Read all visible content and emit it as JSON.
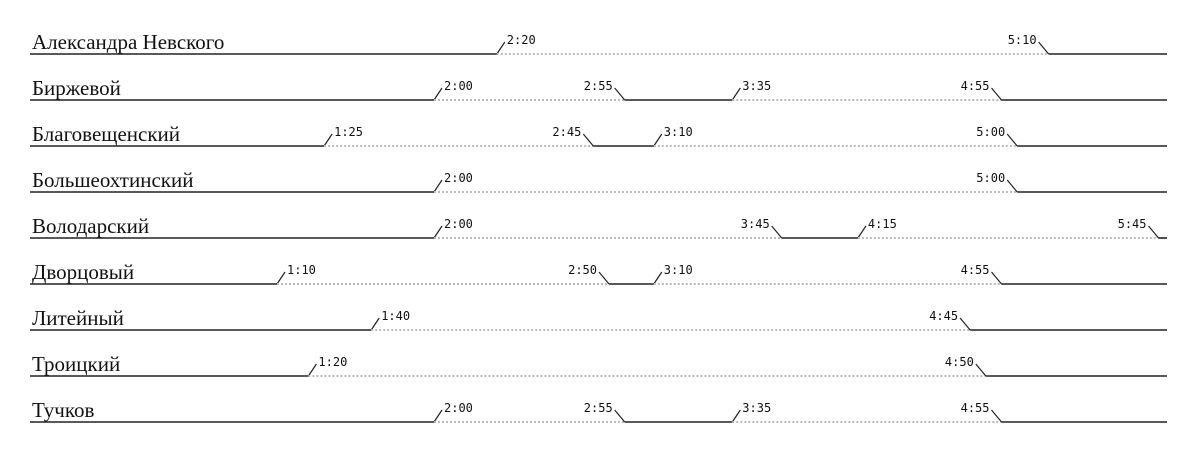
{
  "bridges": [
    {
      "name": "Александра Невского",
      "times": [
        "2:20",
        "5:10"
      ]
    },
    {
      "name": "Биржевой",
      "times": [
        "2:00",
        "2:55",
        "3:35",
        "4:55"
      ]
    },
    {
      "name": "Благовещенский",
      "times": [
        "1:25",
        "2:45",
        "3:10",
        "5:00"
      ]
    },
    {
      "name": "Большеохтинский",
      "times": [
        "2:00",
        "5:00"
      ]
    },
    {
      "name": "Володарский",
      "times": [
        "2:00",
        "3:45",
        "4:15",
        "5:45"
      ]
    },
    {
      "name": "Дворцовый",
      "times": [
        "1:10",
        "2:50",
        "3:10",
        "4:55"
      ]
    },
    {
      "name": "Литейный",
      "times": [
        "1:40",
        "4:45"
      ]
    },
    {
      "name": "Троицкий",
      "times": [
        "1:20",
        "4:50"
      ]
    },
    {
      "name": "Тучков",
      "times": [
        "2:00",
        "2:55",
        "3:35",
        "4:55"
      ]
    }
  ]
}
